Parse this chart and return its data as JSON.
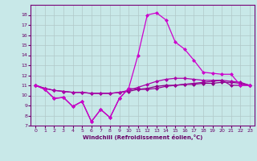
{
  "xlabel": "Windchill (Refroidissement éolien,°C)",
  "x": [
    0,
    1,
    2,
    3,
    4,
    5,
    6,
    7,
    8,
    9,
    10,
    11,
    12,
    13,
    14,
    15,
    16,
    17,
    18,
    19,
    20,
    21,
    22,
    23
  ],
  "line1": [
    11.0,
    10.6,
    9.7,
    9.8,
    8.9,
    9.4,
    7.4,
    8.6,
    7.8,
    9.7,
    10.7,
    14.0,
    18.0,
    18.2,
    17.5,
    15.3,
    14.6,
    13.5,
    12.3,
    12.2,
    12.1,
    12.1,
    11.0,
    11.0
  ],
  "line2": [
    11.0,
    10.6,
    9.7,
    9.8,
    8.9,
    9.4,
    7.4,
    8.6,
    7.8,
    9.7,
    10.7,
    10.6,
    10.6,
    10.7,
    10.9,
    11.0,
    11.1,
    11.2,
    11.3,
    11.4,
    11.5,
    11.0,
    11.0,
    11.0
  ],
  "line3": [
    11.0,
    10.7,
    10.5,
    10.4,
    10.3,
    10.3,
    10.2,
    10.2,
    10.2,
    10.3,
    10.4,
    10.6,
    10.7,
    10.9,
    11.0,
    11.0,
    11.1,
    11.1,
    11.2,
    11.2,
    11.3,
    11.3,
    11.2,
    11.0
  ],
  "line4": [
    11.0,
    10.7,
    10.5,
    10.4,
    10.3,
    10.3,
    10.2,
    10.2,
    10.2,
    10.3,
    10.5,
    10.8,
    11.1,
    11.4,
    11.6,
    11.7,
    11.7,
    11.6,
    11.5,
    11.5,
    11.5,
    11.4,
    11.3,
    11.0
  ],
  "bg_color": "#c8e8e8",
  "line_color1": "#cc00cc",
  "line_color2": "#990099",
  "line_color3": "#880088",
  "line_color4": "#aa00aa",
  "grid_color": "#b0c8c8",
  "ylim": [
    7,
    19
  ],
  "xlim": [
    -0.5,
    23.5
  ],
  "yticks": [
    7,
    8,
    9,
    10,
    11,
    12,
    13,
    14,
    15,
    16,
    17,
    18
  ],
  "xticks": [
    0,
    1,
    2,
    3,
    4,
    5,
    6,
    7,
    8,
    9,
    10,
    11,
    12,
    13,
    14,
    15,
    16,
    17,
    18,
    19,
    20,
    21,
    22,
    23
  ],
  "markersize": 2.5,
  "linewidth": 0.9
}
